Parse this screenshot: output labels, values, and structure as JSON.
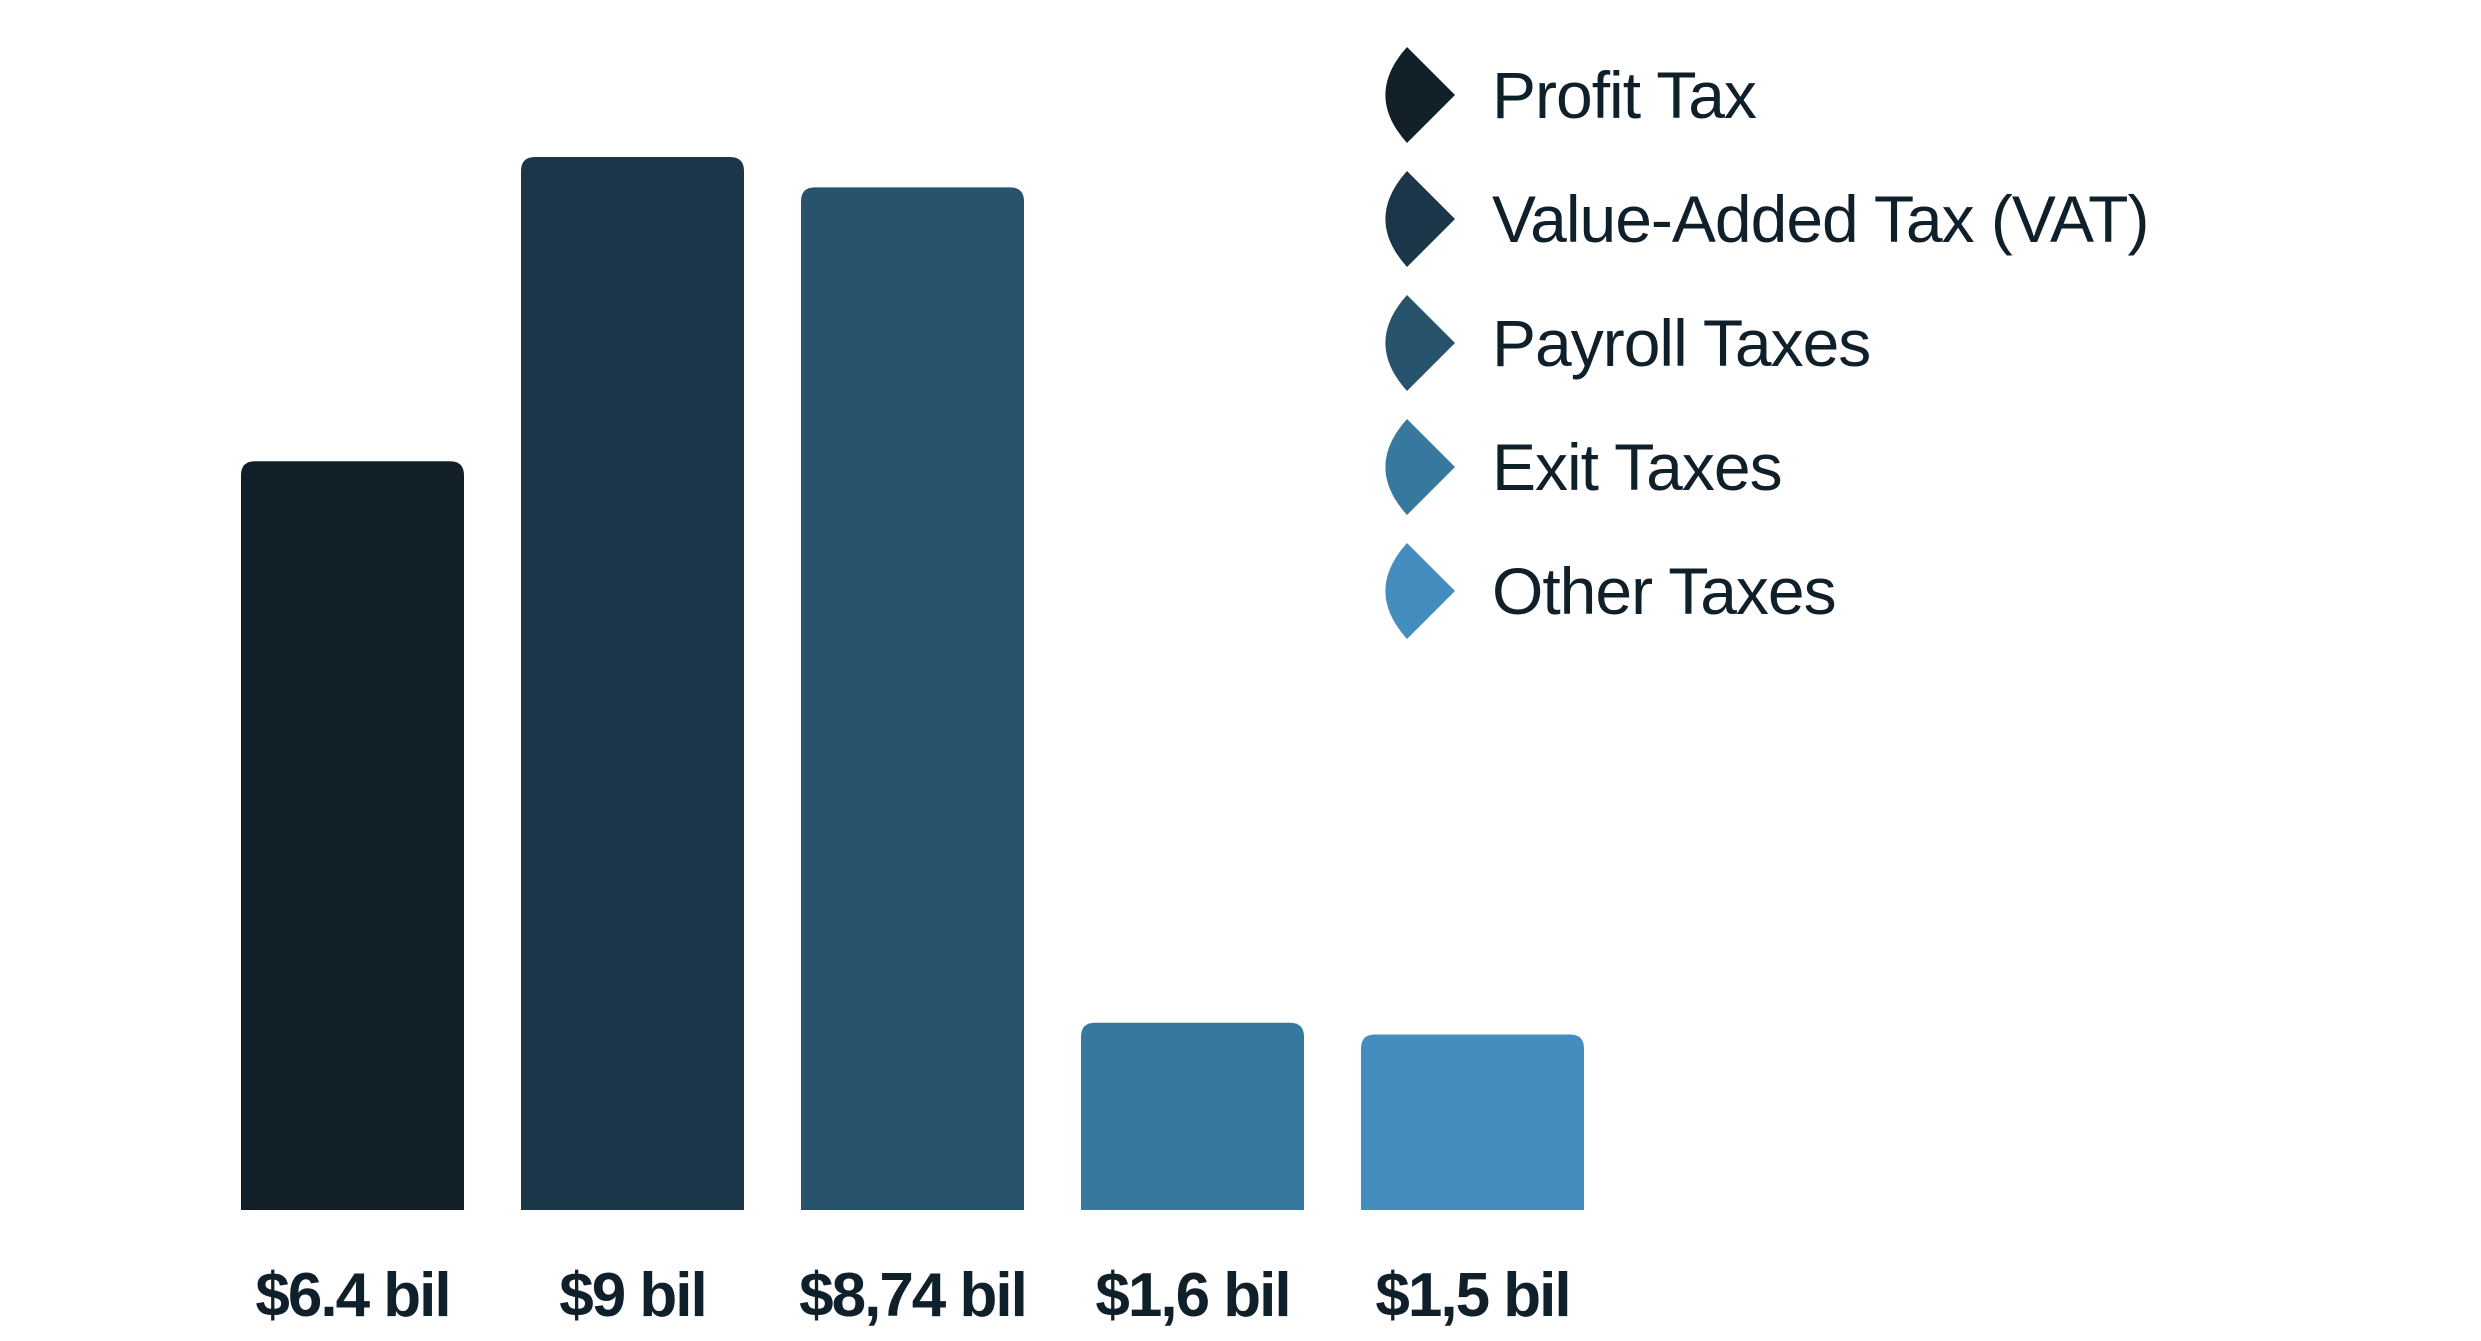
{
  "chart_data": {
    "type": "bar",
    "categories": [
      "Profit Tax",
      "Value-Added Tax (VAT)",
      "Payroll Taxes",
      "Exit Taxes",
      "Other Taxes"
    ],
    "values": [
      6.4,
      9,
      8.74,
      1.6,
      1.5
    ],
    "unit": "$ billion",
    "data_labels": [
      "$6.4 bil",
      "$9 bil",
      "$8,74 bil",
      "$1,6 bil",
      "$1,5 bil"
    ],
    "colors": [
      "#111f28",
      "#1c3649",
      "#28536d",
      "#37789f",
      "#438ebe"
    ],
    "legend": {
      "placement": "top-right",
      "entries": [
        "Profit Tax",
        "Value-Added Tax (VAT)",
        "Payroll Taxes",
        "Exit Taxes",
        "Other Taxes"
      ]
    },
    "title": "",
    "xlabel": "",
    "ylabel": "",
    "ylim": [
      0,
      9.5
    ],
    "grid": false,
    "axes_visible": false
  }
}
